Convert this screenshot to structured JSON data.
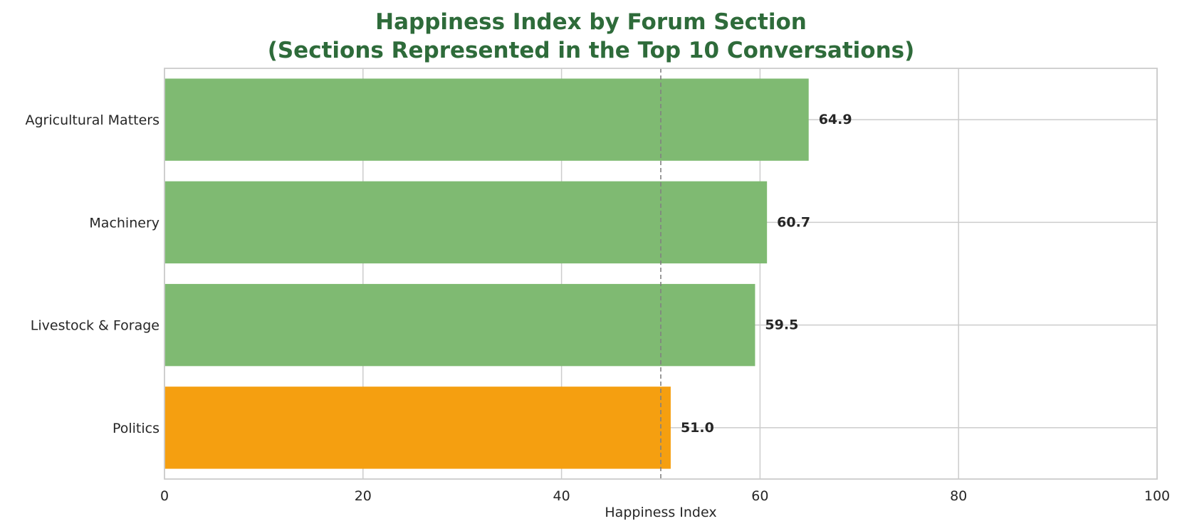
{
  "chart_data": {
    "type": "bar",
    "orientation": "horizontal",
    "title": "Happiness Index by Forum Section",
    "subtitle": "(Sections Represented in the Top 10 Conversations)",
    "xlabel": "Happiness Index",
    "ylabel": "",
    "xlim": [
      0,
      100
    ],
    "xticks": [
      "0",
      "20",
      "40",
      "60",
      "80",
      "100"
    ],
    "categories": [
      "Agricultural Matters",
      "Machinery",
      "Livestock & Forage",
      "Politics"
    ],
    "values": [
      64.9,
      60.7,
      59.5,
      51.0
    ],
    "value_labels": [
      "64.9",
      "60.7",
      "59.5",
      "51.0"
    ],
    "bar_colors": [
      "#7fba72",
      "#7fba72",
      "#7fba72",
      "#f59f10"
    ],
    "reference_line": {
      "x": 50,
      "style": "dashed",
      "color": "#808080"
    },
    "grid": true,
    "colors": {
      "title": "#2e6b3a",
      "grid": "#cccccc",
      "frame": "#cccccc",
      "text": "#262626"
    }
  }
}
